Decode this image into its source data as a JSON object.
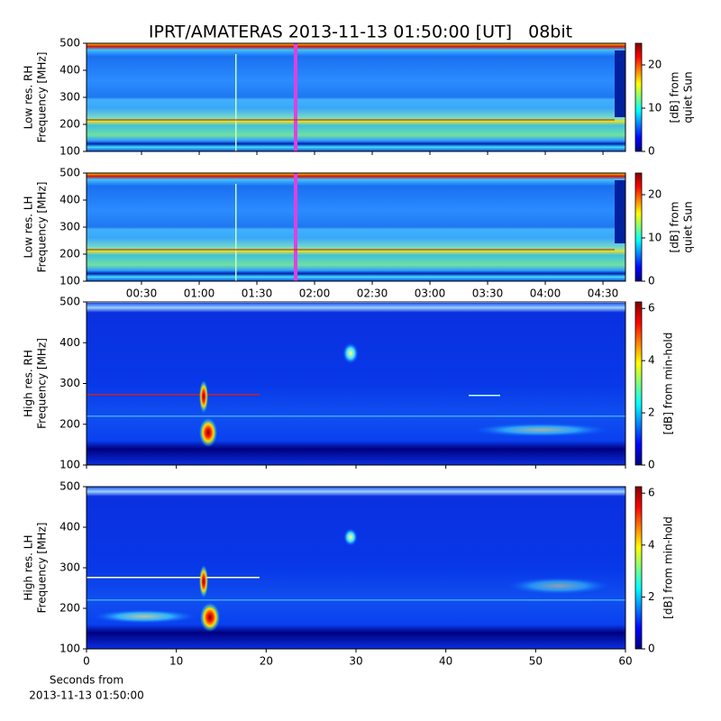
{
  "title": "IPRT/AMATERAS 2013-11-13 01:50:00 [UT]   08bit",
  "chart_data": [
    {
      "type": "heatmap",
      "colormap": "jet",
      "ylabel": [
        "Low res. RH",
        "Frequency [MHz]"
      ],
      "xlim": [
        1.4,
        281.7
      ],
      "ylim": [
        100,
        500
      ],
      "yticks": [
        100,
        200,
        300,
        400,
        500
      ],
      "clim": [
        0,
        25
      ],
      "cticks": [
        0,
        10,
        20
      ],
      "colorbar_label": [
        "[dB] from",
        "quiet Sun"
      ]
    },
    {
      "type": "heatmap",
      "colormap": "jet",
      "ylabel": [
        "Low res. LH",
        "Frequency [MHz]"
      ],
      "xlim": [
        1.4,
        281.7
      ],
      "ylim": [
        100,
        500
      ],
      "yticks": [
        100,
        200,
        300,
        400,
        500
      ],
      "xticks": [
        {
          "value": 30,
          "label": "00:30"
        },
        {
          "value": 60,
          "label": "01:00"
        },
        {
          "value": 90,
          "label": "01:30"
        },
        {
          "value": 120,
          "label": "02:00"
        },
        {
          "value": 150,
          "label": "02:30"
        },
        {
          "value": 180,
          "label": "03:00"
        },
        {
          "value": 210,
          "label": "03:30"
        },
        {
          "value": 240,
          "label": "04:00"
        },
        {
          "value": 270,
          "label": "04:30"
        }
      ],
      "clim": [
        0,
        25
      ],
      "cticks": [
        0,
        10,
        20
      ],
      "colorbar_label": [
        "[dB] from",
        "quiet Sun"
      ]
    },
    {
      "type": "heatmap",
      "colormap": "jet",
      "ylabel": [
        "High res. RH",
        "Frequency [MHz]"
      ],
      "xlim": [
        0,
        60
      ],
      "ylim": [
        100,
        500
      ],
      "yticks": [
        100,
        200,
        300,
        400,
        500
      ],
      "clim": [
        0,
        6.25
      ],
      "cticks": [
        0,
        2,
        4,
        6
      ],
      "colorbar_label": [
        "[dB] from min-hold"
      ]
    },
    {
      "type": "heatmap",
      "colormap": "jet",
      "ylabel": [
        "High res. LH",
        "Frequency [MHz]"
      ],
      "xlim": [
        0,
        60
      ],
      "ylim": [
        100,
        500
      ],
      "yticks": [
        100,
        200,
        300,
        400,
        500
      ],
      "xticks": [
        0,
        10,
        20,
        30,
        40,
        50,
        60
      ],
      "xlabel": [
        "Seconds from",
        "2013-11-13 01:50:00"
      ],
      "clim": [
        0,
        6.25
      ],
      "cticks": [
        0,
        2,
        4,
        6
      ],
      "colorbar_label": [
        "[dB] from min-hold"
      ]
    }
  ]
}
